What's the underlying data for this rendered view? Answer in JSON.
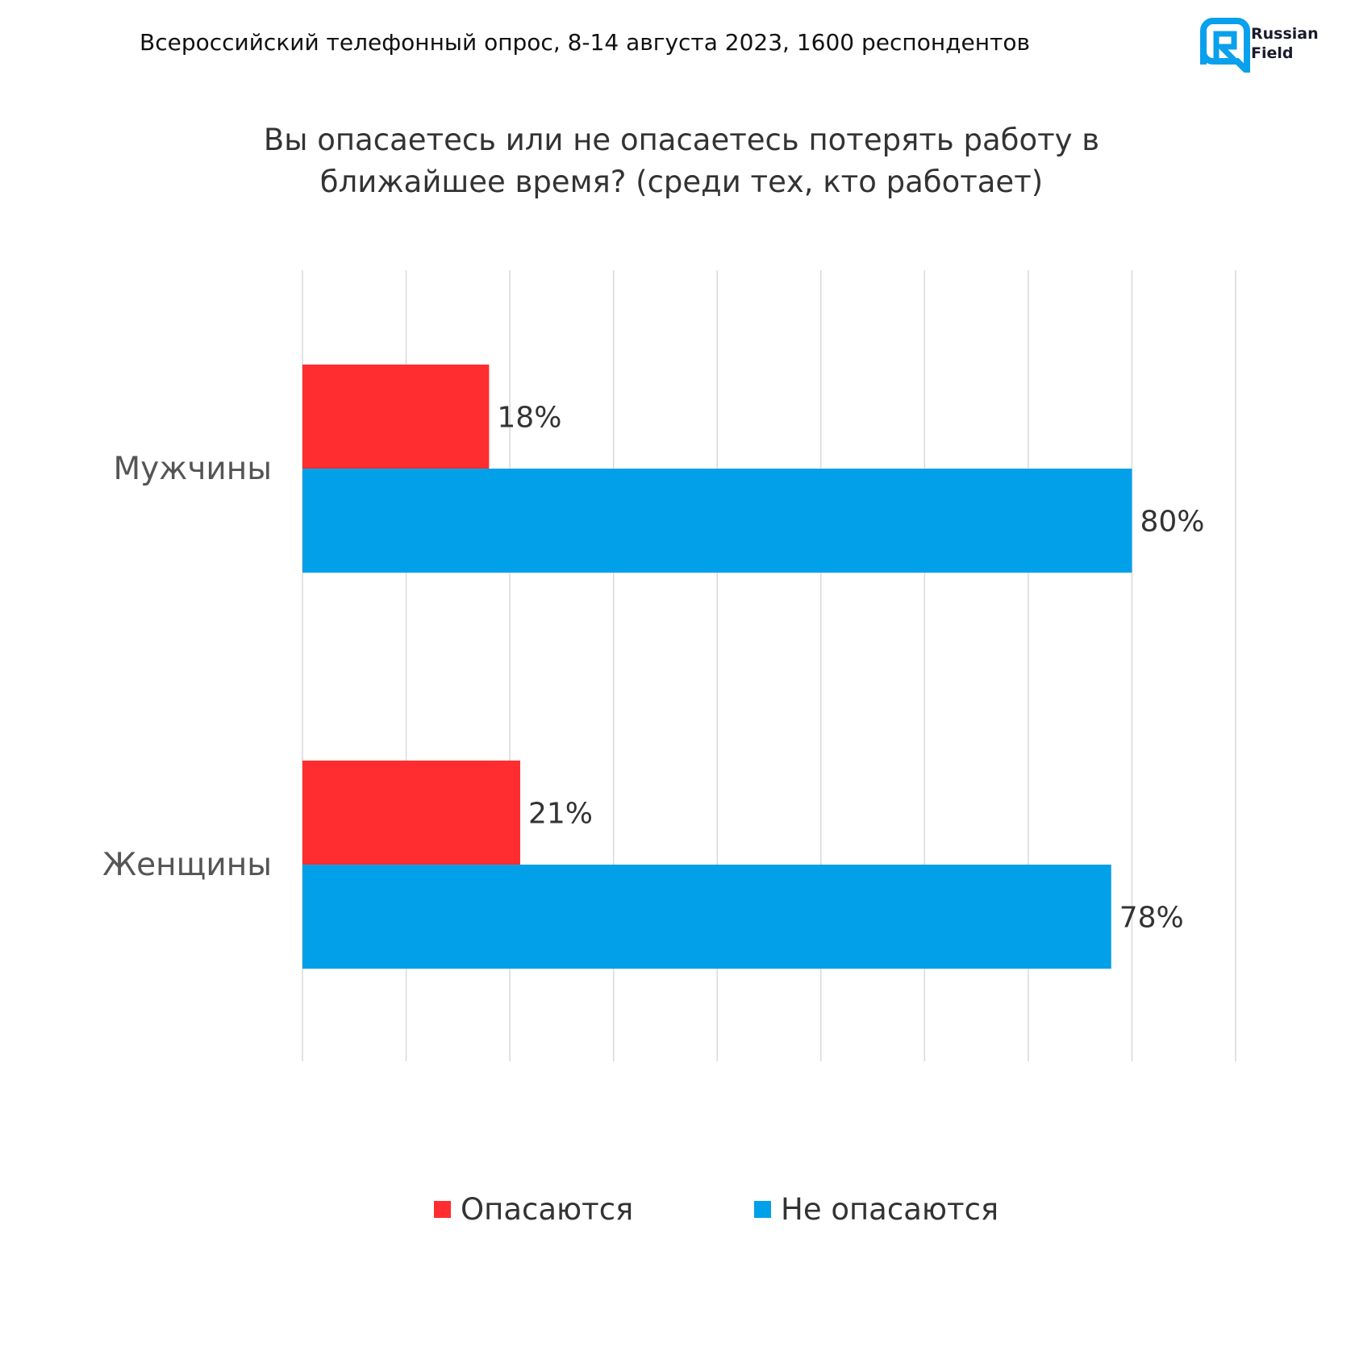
{
  "header": "Всероссийский телефонный опрос, 8-14 августа 2023, 1600 респондентов",
  "logo": {
    "line1": "Russian",
    "line2": "Field"
  },
  "colors": {
    "red": "#FF2D2F",
    "blue": "#03A0EA",
    "grid": "#D9D9D9",
    "logo": "#0AA0EC"
  },
  "chart_data": {
    "type": "bar",
    "orientation": "horizontal",
    "title_lines": [
      "Вы опасаетесь или не опасаетесь потерять работу в",
      "ближайшее время? (среди тех, кто работает)"
    ],
    "categories": [
      "Мужчины",
      "Женщины"
    ],
    "series": [
      {
        "name": "Опасаются",
        "color": "#FF2D2F",
        "values": [
          18,
          21
        ],
        "labels": [
          "18%",
          "21%"
        ]
      },
      {
        "name": "Не опасаются",
        "color": "#03A0EA",
        "values": [
          80,
          78
        ],
        "labels": [
          "80%",
          "78%"
        ]
      }
    ],
    "xlim": [
      0,
      90
    ],
    "grid_step": 10,
    "grid": true,
    "legend_position": "bottom"
  }
}
